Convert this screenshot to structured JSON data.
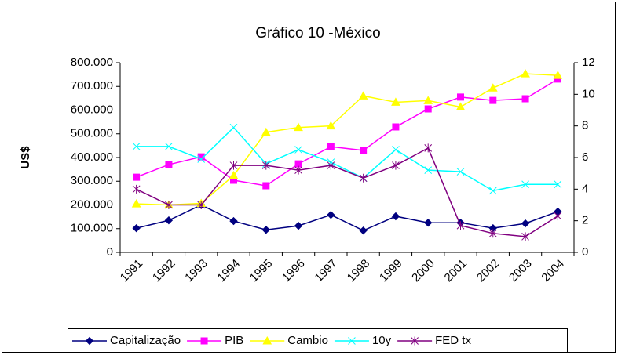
{
  "chart_data": {
    "type": "line",
    "title": "Gráfico 10 -México",
    "y_label": "US$",
    "categories": [
      "1991",
      "1992",
      "1993",
      "1994",
      "1995",
      "1996",
      "1997",
      "1998",
      "1999",
      "2000",
      "2001",
      "2002",
      "2003",
      "2004"
    ],
    "ylim": [
      0,
      800000
    ],
    "yticks": [
      0,
      {
        "value": 100000,
        "label": "100.000"
      },
      {
        "value": 200000,
        "label": "200.000"
      },
      {
        "value": 300000,
        "label": "300.000"
      },
      {
        "value": 400000,
        "label": "400.000"
      },
      {
        "value": 500000,
        "label": "500.000"
      },
      {
        "value": 600000,
        "label": "600.000"
      },
      {
        "value": 700000,
        "label": "700.000"
      },
      {
        "value": 800000,
        "label": "800.000"
      }
    ],
    "y2lim": [
      0,
      12
    ],
    "y2ticks": [
      0,
      2,
      4,
      6,
      8,
      10,
      12
    ],
    "legend": "bottom",
    "series": [
      {
        "name": "Capitalização",
        "color": "#000080",
        "marker": "diamond",
        "values": [
          102000,
          135000,
          200000,
          132000,
          95000,
          112000,
          158000,
          92000,
          152000,
          125000,
          125000,
          102000,
          122000,
          172000
        ]
      },
      {
        "name": "PIB",
        "color": "#ff00ff",
        "marker": "square",
        "values": [
          317000,
          370000,
          403000,
          304000,
          281000,
          373000,
          446000,
          430000,
          529000,
          605000,
          655000,
          641000,
          648000,
          731000
        ]
      },
      {
        "name": "Cambio",
        "color": "#ffff00",
        "marker": "triangle",
        "axis": "y2",
        "values": [
          3.07,
          3.0,
          3.1,
          4.86,
          7.6,
          7.9,
          8.0,
          9.9,
          9.5,
          9.6,
          9.2,
          10.4,
          11.3,
          11.2
        ]
      },
      {
        "name": "10y",
        "color": "#00ffff",
        "marker": "x",
        "axis": "y2",
        "values": [
          6.7,
          6.7,
          5.9,
          7.9,
          5.6,
          6.5,
          5.7,
          4.7,
          6.5,
          5.2,
          5.1,
          3.9,
          4.3,
          4.3
        ]
      },
      {
        "name": "FED tx",
        "color": "#800080",
        "marker": "star",
        "axis": "y2",
        "values": [
          4.0,
          3.0,
          3.0,
          5.5,
          5.5,
          5.2,
          5.5,
          4.7,
          5.5,
          6.6,
          1.7,
          1.2,
          1.0,
          2.3
        ]
      }
    ]
  }
}
